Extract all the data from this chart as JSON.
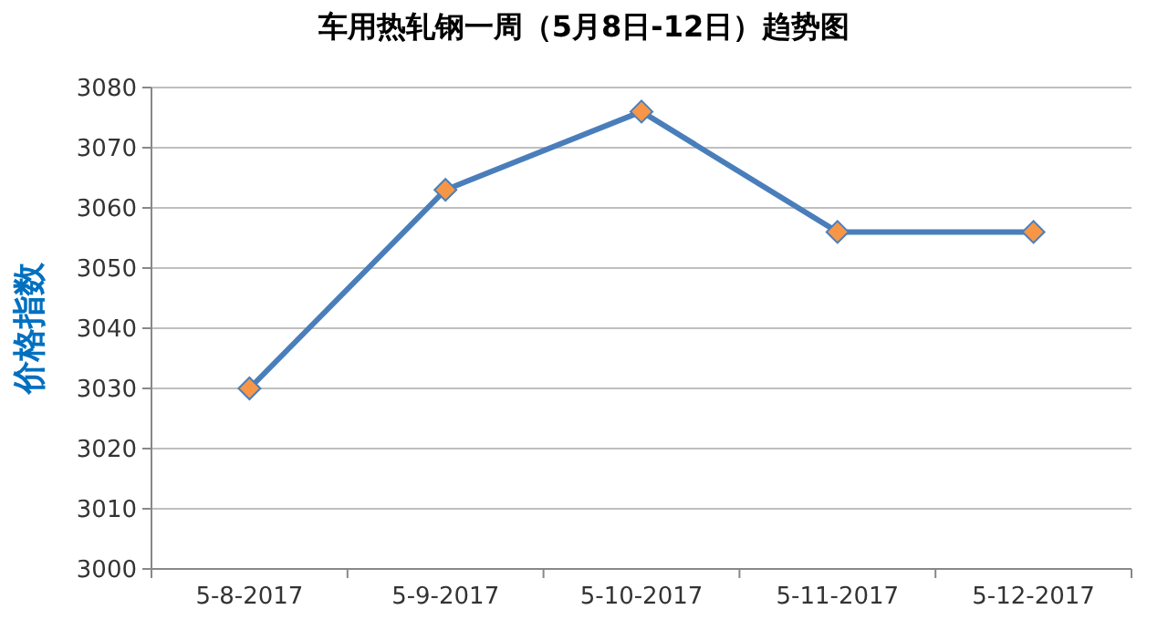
{
  "chart_data": {
    "type": "line",
    "title": "车用热轧钢一周（5月8日-12日）趋势图",
    "ylabel": "价格指数",
    "categories": [
      "5-8-2017",
      "5-9-2017",
      "5-10-2017",
      "5-11-2017",
      "5-12-2017"
    ],
    "series": [
      {
        "color": "#4a7ebb",
        "values": [
          3030,
          3063,
          3076,
          3056,
          3056
        ]
      }
    ],
    "ylim": [
      3000,
      3080
    ],
    "yticks": [
      3000,
      3010,
      3020,
      3030,
      3040,
      3050,
      3060,
      3070,
      3080
    ],
    "grid": "y",
    "marker": "diamond",
    "line_style": "solid"
  }
}
